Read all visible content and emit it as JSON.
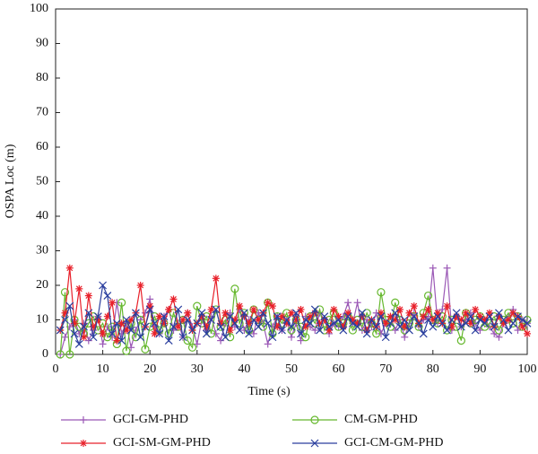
{
  "chart_data": {
    "type": "line",
    "xlabel": "Time (s)",
    "ylabel": "OSPA Loc (m)",
    "x": [
      1,
      2,
      3,
      4,
      5,
      6,
      7,
      8,
      9,
      10,
      11,
      12,
      13,
      14,
      15,
      16,
      17,
      18,
      19,
      20,
      21,
      22,
      23,
      24,
      25,
      26,
      27,
      28,
      29,
      30,
      31,
      32,
      33,
      34,
      35,
      36,
      37,
      38,
      39,
      40,
      41,
      42,
      43,
      44,
      45,
      46,
      47,
      48,
      49,
      50,
      51,
      52,
      53,
      54,
      55,
      56,
      57,
      58,
      59,
      60,
      61,
      62,
      63,
      64,
      65,
      66,
      67,
      68,
      69,
      70,
      71,
      72,
      73,
      74,
      75,
      76,
      77,
      78,
      79,
      80,
      81,
      82,
      83,
      84,
      85,
      86,
      87,
      88,
      89,
      90,
      91,
      92,
      93,
      94,
      95,
      96,
      97,
      98,
      99,
      100
    ],
    "series": [
      {
        "name": "GCI-GM-PHD",
        "color": "#9b59b6",
        "marker": "plus",
        "values": [
          0,
          5,
          8,
          10,
          6,
          9,
          4,
          7,
          11,
          3,
          8,
          5,
          15,
          6,
          9,
          2,
          7,
          10,
          12,
          16,
          8,
          6,
          11,
          13,
          7,
          9,
          5,
          12,
          8,
          3,
          10,
          7,
          11,
          6,
          4,
          9,
          12,
          8,
          13,
          7,
          10,
          6,
          12,
          9,
          3,
          8,
          11,
          7,
          10,
          5,
          9,
          4,
          11,
          8,
          7,
          12,
          10,
          6,
          9,
          8,
          11,
          15,
          9,
          15,
          7,
          10,
          8,
          12,
          6,
          9,
          11,
          7,
          10,
          5,
          9,
          12,
          8,
          10,
          11,
          25,
          9,
          13,
          25,
          7,
          11,
          8,
          10,
          12,
          9,
          7,
          10,
          8,
          6,
          5,
          9,
          11,
          13,
          7,
          10,
          9
        ]
      },
      {
        "name": "CM-GM-PHD",
        "color": "#66b82e",
        "marker": "circle",
        "values": [
          0,
          18,
          0,
          10,
          8,
          6,
          9,
          11,
          7,
          9,
          5,
          8,
          3,
          15,
          1,
          9,
          5,
          10,
          1.5,
          8,
          11,
          7,
          9,
          6,
          12,
          8,
          10,
          4,
          2,
          14,
          9,
          11,
          6,
          13,
          8,
          10,
          5,
          19,
          9,
          12,
          7,
          13,
          10,
          8,
          15,
          6,
          11,
          9,
          12,
          7,
          10,
          8,
          5,
          11,
          9,
          13,
          7,
          10,
          12,
          8,
          9,
          11,
          7,
          10,
          8,
          12,
          9,
          6,
          18,
          10,
          8,
          15,
          10,
          7,
          9,
          11,
          8,
          12,
          17,
          10,
          9,
          11,
          7,
          10,
          8,
          4,
          12,
          9,
          10,
          11,
          8,
          9,
          11,
          7,
          10,
          12,
          9,
          11,
          8,
          10
        ]
      },
      {
        "name": "GCI-SM-GM-PHD",
        "color": "#e8202a",
        "marker": "asterisk",
        "values": [
          7,
          12,
          25,
          9,
          19,
          5,
          17,
          8,
          10,
          6,
          11,
          15,
          4,
          9,
          7,
          10,
          12,
          20,
          8,
          14,
          6,
          11,
          9,
          13,
          16,
          8,
          10,
          12,
          7,
          9,
          11,
          8,
          13,
          22,
          9,
          12,
          7,
          10,
          14,
          11,
          9,
          13,
          10,
          12,
          15,
          14,
          8,
          11,
          9,
          12,
          10,
          13,
          8,
          11,
          12,
          9,
          10,
          7,
          13,
          11,
          8,
          12,
          10,
          9,
          11,
          7,
          10,
          8,
          12,
          9,
          11,
          10,
          13,
          8,
          12,
          14,
          9,
          11,
          13,
          10,
          12,
          9,
          14,
          8,
          11,
          10,
          12,
          9,
          13,
          11,
          10,
          12,
          8,
          11,
          9,
          10,
          12,
          11,
          8,
          6
        ]
      },
      {
        "name": "GCI-CM-GM-PHD",
        "color": "#2b3f9e",
        "marker": "cross",
        "values": [
          7,
          10,
          14,
          6,
          3,
          8,
          12,
          5,
          11,
          20,
          17,
          6,
          9,
          4,
          10,
          7,
          12,
          5,
          8,
          13,
          9,
          6,
          11,
          4,
          8,
          13,
          5,
          10,
          7,
          9,
          12,
          6,
          10,
          13,
          8,
          5,
          11,
          9,
          7,
          12,
          6,
          10,
          8,
          12,
          9,
          5,
          11,
          7,
          10,
          8,
          12,
          6,
          10,
          9,
          13,
          7,
          11,
          8,
          9,
          10,
          7,
          11,
          9,
          8,
          12,
          6,
          10,
          8,
          11,
          5,
          9,
          12,
          8,
          10,
          7,
          11,
          9,
          6,
          10,
          8,
          11,
          9,
          7,
          10,
          12,
          8,
          9,
          11,
          7,
          10,
          9,
          11,
          8,
          12,
          10,
          7,
          9,
          11,
          10,
          9
        ]
      }
    ],
    "xlim": [
      0,
      100
    ],
    "xticks": [
      0,
      10,
      20,
      30,
      40,
      50,
      60,
      70,
      80,
      90,
      100
    ],
    "ylim": [
      0,
      100
    ],
    "yticks": [
      0,
      10,
      20,
      30,
      40,
      50,
      60,
      70,
      80,
      90,
      100
    ],
    "legend": "bottom"
  }
}
